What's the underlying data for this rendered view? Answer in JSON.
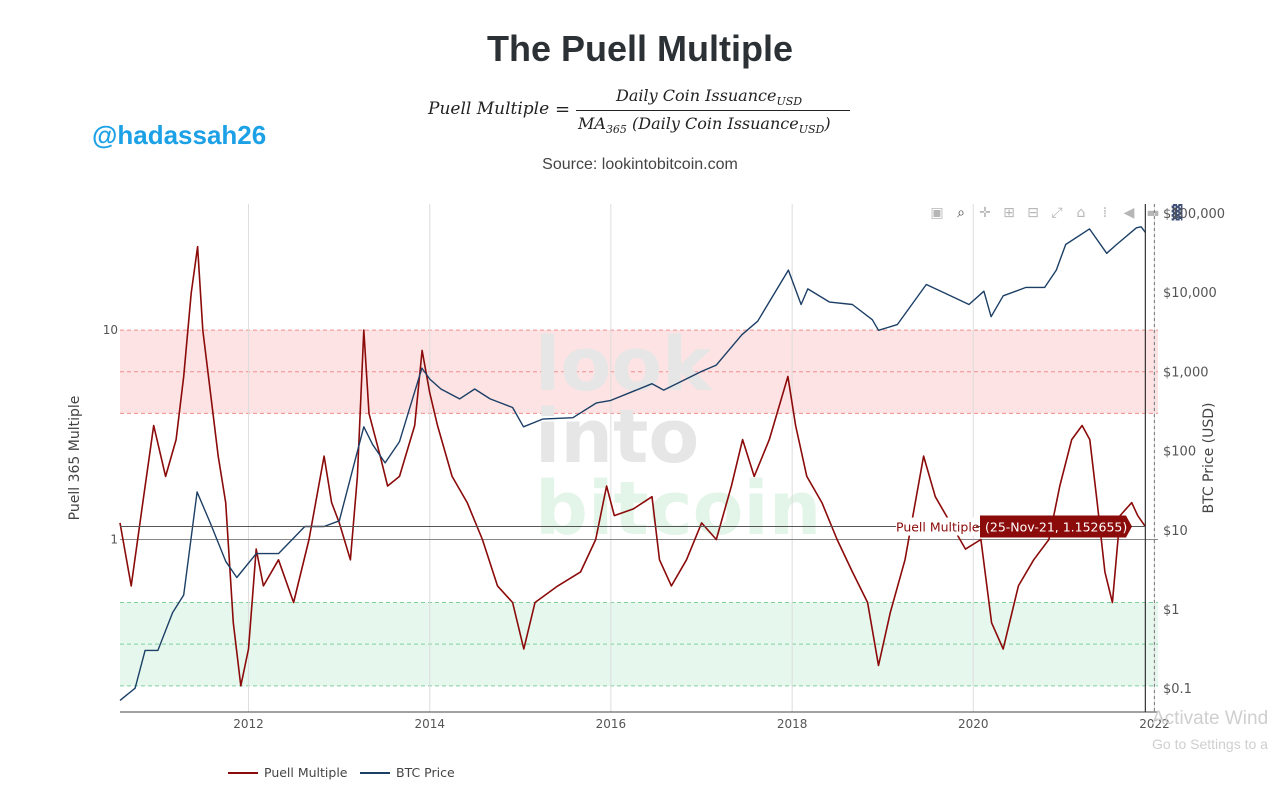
{
  "page": {
    "title": "The Puell Multiple",
    "handle": "@hadassah26",
    "source": "Source: lookintobitcoin.com",
    "formula": {
      "lhs": "Puell Multiple",
      "equals": "=",
      "numerator": "Daily Coin Issuance",
      "numerator_sub": "USD",
      "denominator_pre": "MA",
      "denominator_pre_sub": "365",
      "denominator_mid": " (Daily Coin Issuance",
      "denominator_sub": "USD",
      "denominator_post": ")"
    },
    "watermark": [
      "look",
      "into",
      "bitcoin"
    ],
    "os_overlay": {
      "line1": "Activate Wind",
      "line2": "Go to Settings to a"
    },
    "modebar_icons": [
      "camera-icon",
      "zoom-icon",
      "pan-icon",
      "zoom-in-icon",
      "zoom-out-icon",
      "autoscale-icon",
      "reset-axes-icon",
      "spike-lines-icon",
      "hover-closest-icon",
      "hover-compare-icon",
      "plotly-logo-icon"
    ]
  },
  "chart_data": {
    "type": "line",
    "x_axis": {
      "ticks": [
        "2012",
        "2014",
        "2016",
        "2018",
        "2020",
        "2022"
      ],
      "range": [
        "2010-08-01",
        "2022-01-15"
      ]
    },
    "y_left": {
      "label": "Puell 365 Multiple",
      "scale": "log",
      "ticks": [
        {
          "v": 10,
          "label": "10"
        },
        {
          "v": 1,
          "label": "1"
        }
      ],
      "range": [
        0.15,
        40
      ]
    },
    "y_right": {
      "label": "BTC Price (USD)",
      "scale": "log",
      "ticks": [
        {
          "v": 100000,
          "label": "$100,000"
        },
        {
          "v": 10000,
          "label": "$10,000"
        },
        {
          "v": 1000,
          "label": "$1,000"
        },
        {
          "v": 100,
          "label": "$100"
        },
        {
          "v": 10,
          "label": "$10"
        },
        {
          "v": 1,
          "label": "$1"
        },
        {
          "v": 0.1,
          "label": "$0.1"
        }
      ],
      "range": [
        0.05,
        130000
      ]
    },
    "zones": [
      {
        "name": "high",
        "from": 4,
        "to": 10,
        "color": "#fde3e3"
      },
      {
        "name": "low",
        "from": 0.2,
        "to": 0.5,
        "color": "#e6f7ee"
      }
    ],
    "series": [
      {
        "name": "Puell Multiple",
        "axis": "left",
        "color": "#8b0a0a",
        "points": [
          [
            "2010-08-01",
            1.2
          ],
          [
            "2010-09-15",
            0.6
          ],
          [
            "2010-11-01",
            1.5
          ],
          [
            "2010-12-15",
            3.5
          ],
          [
            "2011-02-01",
            2.0
          ],
          [
            "2011-03-15",
            3.0
          ],
          [
            "2011-04-15",
            6.0
          ],
          [
            "2011-05-15",
            15.0
          ],
          [
            "2011-06-10",
            25.0
          ],
          [
            "2011-07-01",
            10.0
          ],
          [
            "2011-08-01",
            5.0
          ],
          [
            "2011-09-01",
            2.5
          ],
          [
            "2011-10-01",
            1.5
          ],
          [
            "2011-11-01",
            0.4
          ],
          [
            "2011-12-01",
            0.2
          ],
          [
            "2012-01-01",
            0.3
          ],
          [
            "2012-02-01",
            0.9
          ],
          [
            "2012-03-01",
            0.6
          ],
          [
            "2012-05-01",
            0.8
          ],
          [
            "2012-07-01",
            0.5
          ],
          [
            "2012-09-01",
            1.0
          ],
          [
            "2012-11-01",
            2.5
          ],
          [
            "2012-12-01",
            1.5
          ],
          [
            "2013-01-01",
            1.2
          ],
          [
            "2013-02-15",
            0.8
          ],
          [
            "2013-03-15",
            2.0
          ],
          [
            "2013-04-10",
            10.0
          ],
          [
            "2013-05-01",
            4.0
          ],
          [
            "2013-06-15",
            2.5
          ],
          [
            "2013-07-15",
            1.8
          ],
          [
            "2013-09-01",
            2.0
          ],
          [
            "2013-11-01",
            3.5
          ],
          [
            "2013-12-01",
            8.0
          ],
          [
            "2014-01-01",
            5.0
          ],
          [
            "2014-02-01",
            3.5
          ],
          [
            "2014-04-01",
            2.0
          ],
          [
            "2014-06-01",
            1.5
          ],
          [
            "2014-08-01",
            1.0
          ],
          [
            "2014-10-01",
            0.6
          ],
          [
            "2014-12-01",
            0.5
          ],
          [
            "2015-01-15",
            0.3
          ],
          [
            "2015-03-01",
            0.5
          ],
          [
            "2015-06-01",
            0.6
          ],
          [
            "2015-09-01",
            0.7
          ],
          [
            "2015-11-01",
            1.0
          ],
          [
            "2015-12-15",
            1.8
          ],
          [
            "2016-01-15",
            1.3
          ],
          [
            "2016-04-01",
            1.4
          ],
          [
            "2016-06-15",
            1.6
          ],
          [
            "2016-07-15",
            0.8
          ],
          [
            "2016-09-01",
            0.6
          ],
          [
            "2016-11-01",
            0.8
          ],
          [
            "2017-01-01",
            1.2
          ],
          [
            "2017-03-01",
            1.0
          ],
          [
            "2017-05-01",
            1.8
          ],
          [
            "2017-06-15",
            3.0
          ],
          [
            "2017-08-01",
            2.0
          ],
          [
            "2017-10-01",
            3.0
          ],
          [
            "2017-12-15",
            6.0
          ],
          [
            "2018-01-15",
            3.5
          ],
          [
            "2018-03-01",
            2.0
          ],
          [
            "2018-05-01",
            1.5
          ],
          [
            "2018-07-01",
            1.0
          ],
          [
            "2018-09-01",
            0.7
          ],
          [
            "2018-11-01",
            0.5
          ],
          [
            "2018-12-15",
            0.25
          ],
          [
            "2019-02-01",
            0.45
          ],
          [
            "2019-04-01",
            0.8
          ],
          [
            "2019-06-15",
            2.5
          ],
          [
            "2019-08-01",
            1.6
          ],
          [
            "2019-10-01",
            1.2
          ],
          [
            "2019-12-01",
            0.9
          ],
          [
            "2020-02-01",
            1.0
          ],
          [
            "2020-03-15",
            0.4
          ],
          [
            "2020-05-01",
            0.3
          ],
          [
            "2020-07-01",
            0.6
          ],
          [
            "2020-09-01",
            0.8
          ],
          [
            "2020-11-01",
            1.0
          ],
          [
            "2020-12-15",
            1.8
          ],
          [
            "2021-02-01",
            3.0
          ],
          [
            "2021-03-15",
            3.5
          ],
          [
            "2021-04-15",
            3.0
          ],
          [
            "2021-05-15",
            1.5
          ],
          [
            "2021-06-15",
            0.7
          ],
          [
            "2021-07-15",
            0.5
          ],
          [
            "2021-08-15",
            1.3
          ],
          [
            "2021-10-01",
            1.5
          ],
          [
            "2021-10-25",
            1.3
          ],
          [
            "2021-11-25",
            1.152655
          ]
        ]
      },
      {
        "name": "BTC Price",
        "axis": "right",
        "color": "#1c3f66",
        "points": [
          [
            "2010-08-01",
            0.07
          ],
          [
            "2010-10-01",
            0.1
          ],
          [
            "2010-11-10",
            0.3
          ],
          [
            "2011-01-01",
            0.3
          ],
          [
            "2011-03-01",
            0.9
          ],
          [
            "2011-04-15",
            1.5
          ],
          [
            "2011-06-08",
            30.0
          ],
          [
            "2011-08-01",
            12.0
          ],
          [
            "2011-10-01",
            4.0
          ],
          [
            "2011-11-15",
            2.5
          ],
          [
            "2012-02-01",
            5.0
          ],
          [
            "2012-05-01",
            5.0
          ],
          [
            "2012-08-15",
            11.0
          ],
          [
            "2012-11-01",
            11.0
          ],
          [
            "2013-01-01",
            13.0
          ],
          [
            "2013-04-10",
            200.0
          ],
          [
            "2013-05-15",
            120.0
          ],
          [
            "2013-07-05",
            70.0
          ],
          [
            "2013-09-01",
            130.0
          ],
          [
            "2013-11-30",
            1100.0
          ],
          [
            "2014-01-01",
            800.0
          ],
          [
            "2014-02-15",
            600.0
          ],
          [
            "2014-05-01",
            450.0
          ],
          [
            "2014-07-01",
            600.0
          ],
          [
            "2014-09-01",
            450.0
          ],
          [
            "2014-12-01",
            350.0
          ],
          [
            "2015-01-14",
            200.0
          ],
          [
            "2015-04-01",
            250.0
          ],
          [
            "2015-08-01",
            260.0
          ],
          [
            "2015-11-04",
            400.0
          ],
          [
            "2016-01-01",
            430.0
          ],
          [
            "2016-06-15",
            700.0
          ],
          [
            "2016-08-01",
            580.0
          ],
          [
            "2017-01-01",
            1000.0
          ],
          [
            "2017-03-01",
            1200.0
          ],
          [
            "2017-06-12",
            2900.0
          ],
          [
            "2017-08-15",
            4300.0
          ],
          [
            "2017-12-17",
            19000.0
          ],
          [
            "2018-02-06",
            7000.0
          ],
          [
            "2018-03-05",
            11000.0
          ],
          [
            "2018-06-01",
            7500.0
          ],
          [
            "2018-09-01",
            7000.0
          ],
          [
            "2018-11-20",
            4500.0
          ],
          [
            "2018-12-15",
            3300.0
          ],
          [
            "2019-03-01",
            3900.0
          ],
          [
            "2019-06-26",
            12500.0
          ],
          [
            "2019-09-01",
            10000.0
          ],
          [
            "2019-12-15",
            7000.0
          ],
          [
            "2020-02-13",
            10300.0
          ],
          [
            "2020-03-13",
            4900.0
          ],
          [
            "2020-05-01",
            9000.0
          ],
          [
            "2020-08-01",
            11500.0
          ],
          [
            "2020-10-15",
            11500.0
          ],
          [
            "2020-12-01",
            19000.0
          ],
          [
            "2021-01-08",
            40000.0
          ],
          [
            "2021-04-14",
            63000.0
          ],
          [
            "2021-06-22",
            31000.0
          ],
          [
            "2021-08-01",
            40000.0
          ],
          [
            "2021-10-20",
            65000.0
          ],
          [
            "2021-11-08",
            67000.0
          ],
          [
            "2021-11-25",
            57000.0
          ]
        ]
      }
    ],
    "hover": {
      "date_iso": "2021-11-25",
      "label": "Puell Multiple",
      "value_text": "(25-Nov-21, 1.152655)"
    },
    "legend": {
      "placement": "bottom-left",
      "items": [
        "Puell Multiple",
        "BTC Price"
      ]
    }
  }
}
